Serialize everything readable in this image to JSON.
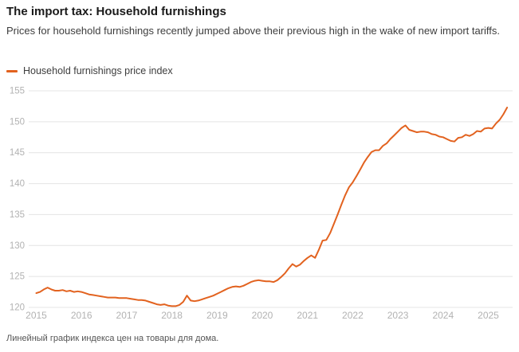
{
  "header": {
    "title": "The import tax: Household furnishings",
    "subtitle": "Prices for household furnishings recently jumped above their previous high in the wake of new import tariffs."
  },
  "legend": {
    "label": "Household furnishings price index",
    "swatch_color": "#e2621f"
  },
  "footer": {
    "caption": "Линейный график индекса цен на товары для дома."
  },
  "colors": {
    "line": "#e2621f",
    "grid": "#e4e4e4",
    "tick_label": "#b2b2b2",
    "title_text": "#1a1a1a",
    "body_text": "#3d3d3d",
    "footer_text": "#545454"
  },
  "chart_data": {
    "type": "line",
    "title": "The import tax: Household furnishings",
    "xlabel": "",
    "ylabel": "",
    "x_ticks": [
      2015,
      2016,
      2017,
      2018,
      2019,
      2020,
      2021,
      2022,
      2023,
      2024,
      2025
    ],
    "y_ticks": [
      120,
      125,
      130,
      135,
      140,
      145,
      150,
      155
    ],
    "xlim": [
      2015.0,
      2025.6
    ],
    "ylim": [
      119.3,
      155.0
    ],
    "grid": "horizontal-only",
    "legend_position": "top-left",
    "series": [
      {
        "name": "Household furnishings price index",
        "points": [
          [
            2015.0,
            122.3
          ],
          [
            2015.083,
            122.5
          ],
          [
            2015.167,
            122.9
          ],
          [
            2015.25,
            123.2
          ],
          [
            2015.333,
            122.9
          ],
          [
            2015.417,
            122.7
          ],
          [
            2015.5,
            122.7
          ],
          [
            2015.583,
            122.8
          ],
          [
            2015.667,
            122.6
          ],
          [
            2015.75,
            122.7
          ],
          [
            2015.833,
            122.5
          ],
          [
            2015.917,
            122.6
          ],
          [
            2016.0,
            122.5
          ],
          [
            2016.083,
            122.3
          ],
          [
            2016.167,
            122.1
          ],
          [
            2016.25,
            122.0
          ],
          [
            2016.333,
            121.9
          ],
          [
            2016.417,
            121.8
          ],
          [
            2016.5,
            121.7
          ],
          [
            2016.583,
            121.6
          ],
          [
            2016.667,
            121.6
          ],
          [
            2016.75,
            121.6
          ],
          [
            2016.833,
            121.5
          ],
          [
            2016.917,
            121.5
          ],
          [
            2017.0,
            121.5
          ],
          [
            2017.083,
            121.4
          ],
          [
            2017.167,
            121.3
          ],
          [
            2017.25,
            121.2
          ],
          [
            2017.333,
            121.2
          ],
          [
            2017.417,
            121.1
          ],
          [
            2017.5,
            120.9
          ],
          [
            2017.583,
            120.7
          ],
          [
            2017.667,
            120.5
          ],
          [
            2017.75,
            120.4
          ],
          [
            2017.833,
            120.5
          ],
          [
            2017.917,
            120.3
          ],
          [
            2018.0,
            120.2
          ],
          [
            2018.083,
            120.2
          ],
          [
            2018.167,
            120.4
          ],
          [
            2018.25,
            120.9
          ],
          [
            2018.333,
            121.9
          ],
          [
            2018.417,
            121.1
          ],
          [
            2018.5,
            121.0
          ],
          [
            2018.583,
            121.1
          ],
          [
            2018.667,
            121.3
          ],
          [
            2018.75,
            121.5
          ],
          [
            2018.833,
            121.7
          ],
          [
            2018.917,
            121.9
          ],
          [
            2019.0,
            122.2
          ],
          [
            2019.083,
            122.5
          ],
          [
            2019.167,
            122.8
          ],
          [
            2019.25,
            123.1
          ],
          [
            2019.333,
            123.3
          ],
          [
            2019.417,
            123.4
          ],
          [
            2019.5,
            123.3
          ],
          [
            2019.583,
            123.5
          ],
          [
            2019.667,
            123.8
          ],
          [
            2019.75,
            124.1
          ],
          [
            2019.833,
            124.3
          ],
          [
            2019.917,
            124.4
          ],
          [
            2020.0,
            124.3
          ],
          [
            2020.083,
            124.2
          ],
          [
            2020.167,
            124.2
          ],
          [
            2020.25,
            124.1
          ],
          [
            2020.333,
            124.4
          ],
          [
            2020.417,
            124.9
          ],
          [
            2020.5,
            125.5
          ],
          [
            2020.583,
            126.3
          ],
          [
            2020.667,
            127.0
          ],
          [
            2020.75,
            126.6
          ],
          [
            2020.833,
            126.9
          ],
          [
            2020.917,
            127.5
          ],
          [
            2021.0,
            128.0
          ],
          [
            2021.083,
            128.4
          ],
          [
            2021.167,
            128.0
          ],
          [
            2021.25,
            129.3
          ],
          [
            2021.333,
            130.8
          ],
          [
            2021.417,
            130.9
          ],
          [
            2021.5,
            132.0
          ],
          [
            2021.583,
            133.5
          ],
          [
            2021.667,
            135.0
          ],
          [
            2021.75,
            136.6
          ],
          [
            2021.833,
            138.1
          ],
          [
            2021.917,
            139.4
          ],
          [
            2022.0,
            140.2
          ],
          [
            2022.083,
            141.2
          ],
          [
            2022.167,
            142.3
          ],
          [
            2022.25,
            143.4
          ],
          [
            2022.333,
            144.3
          ],
          [
            2022.417,
            145.1
          ],
          [
            2022.5,
            145.4
          ],
          [
            2022.583,
            145.4
          ],
          [
            2022.667,
            146.1
          ],
          [
            2022.75,
            146.5
          ],
          [
            2022.833,
            147.2
          ],
          [
            2022.917,
            147.8
          ],
          [
            2023.0,
            148.4
          ],
          [
            2023.083,
            149.0
          ],
          [
            2023.167,
            149.4
          ],
          [
            2023.25,
            148.7
          ],
          [
            2023.333,
            148.5
          ],
          [
            2023.417,
            148.3
          ],
          [
            2023.5,
            148.4
          ],
          [
            2023.583,
            148.4
          ],
          [
            2023.667,
            148.3
          ],
          [
            2023.75,
            148.0
          ],
          [
            2023.833,
            147.9
          ],
          [
            2023.917,
            147.6
          ],
          [
            2024.0,
            147.5
          ],
          [
            2024.083,
            147.2
          ],
          [
            2024.167,
            146.9
          ],
          [
            2024.25,
            146.8
          ],
          [
            2024.333,
            147.4
          ],
          [
            2024.417,
            147.5
          ],
          [
            2024.5,
            147.9
          ],
          [
            2024.583,
            147.7
          ],
          [
            2024.667,
            148.0
          ],
          [
            2024.75,
            148.5
          ],
          [
            2024.833,
            148.4
          ],
          [
            2024.917,
            148.9
          ],
          [
            2025.0,
            149.0
          ],
          [
            2025.083,
            148.9
          ],
          [
            2025.167,
            149.7
          ],
          [
            2025.25,
            150.3
          ],
          [
            2025.333,
            151.2
          ],
          [
            2025.417,
            152.3
          ]
        ]
      }
    ]
  }
}
